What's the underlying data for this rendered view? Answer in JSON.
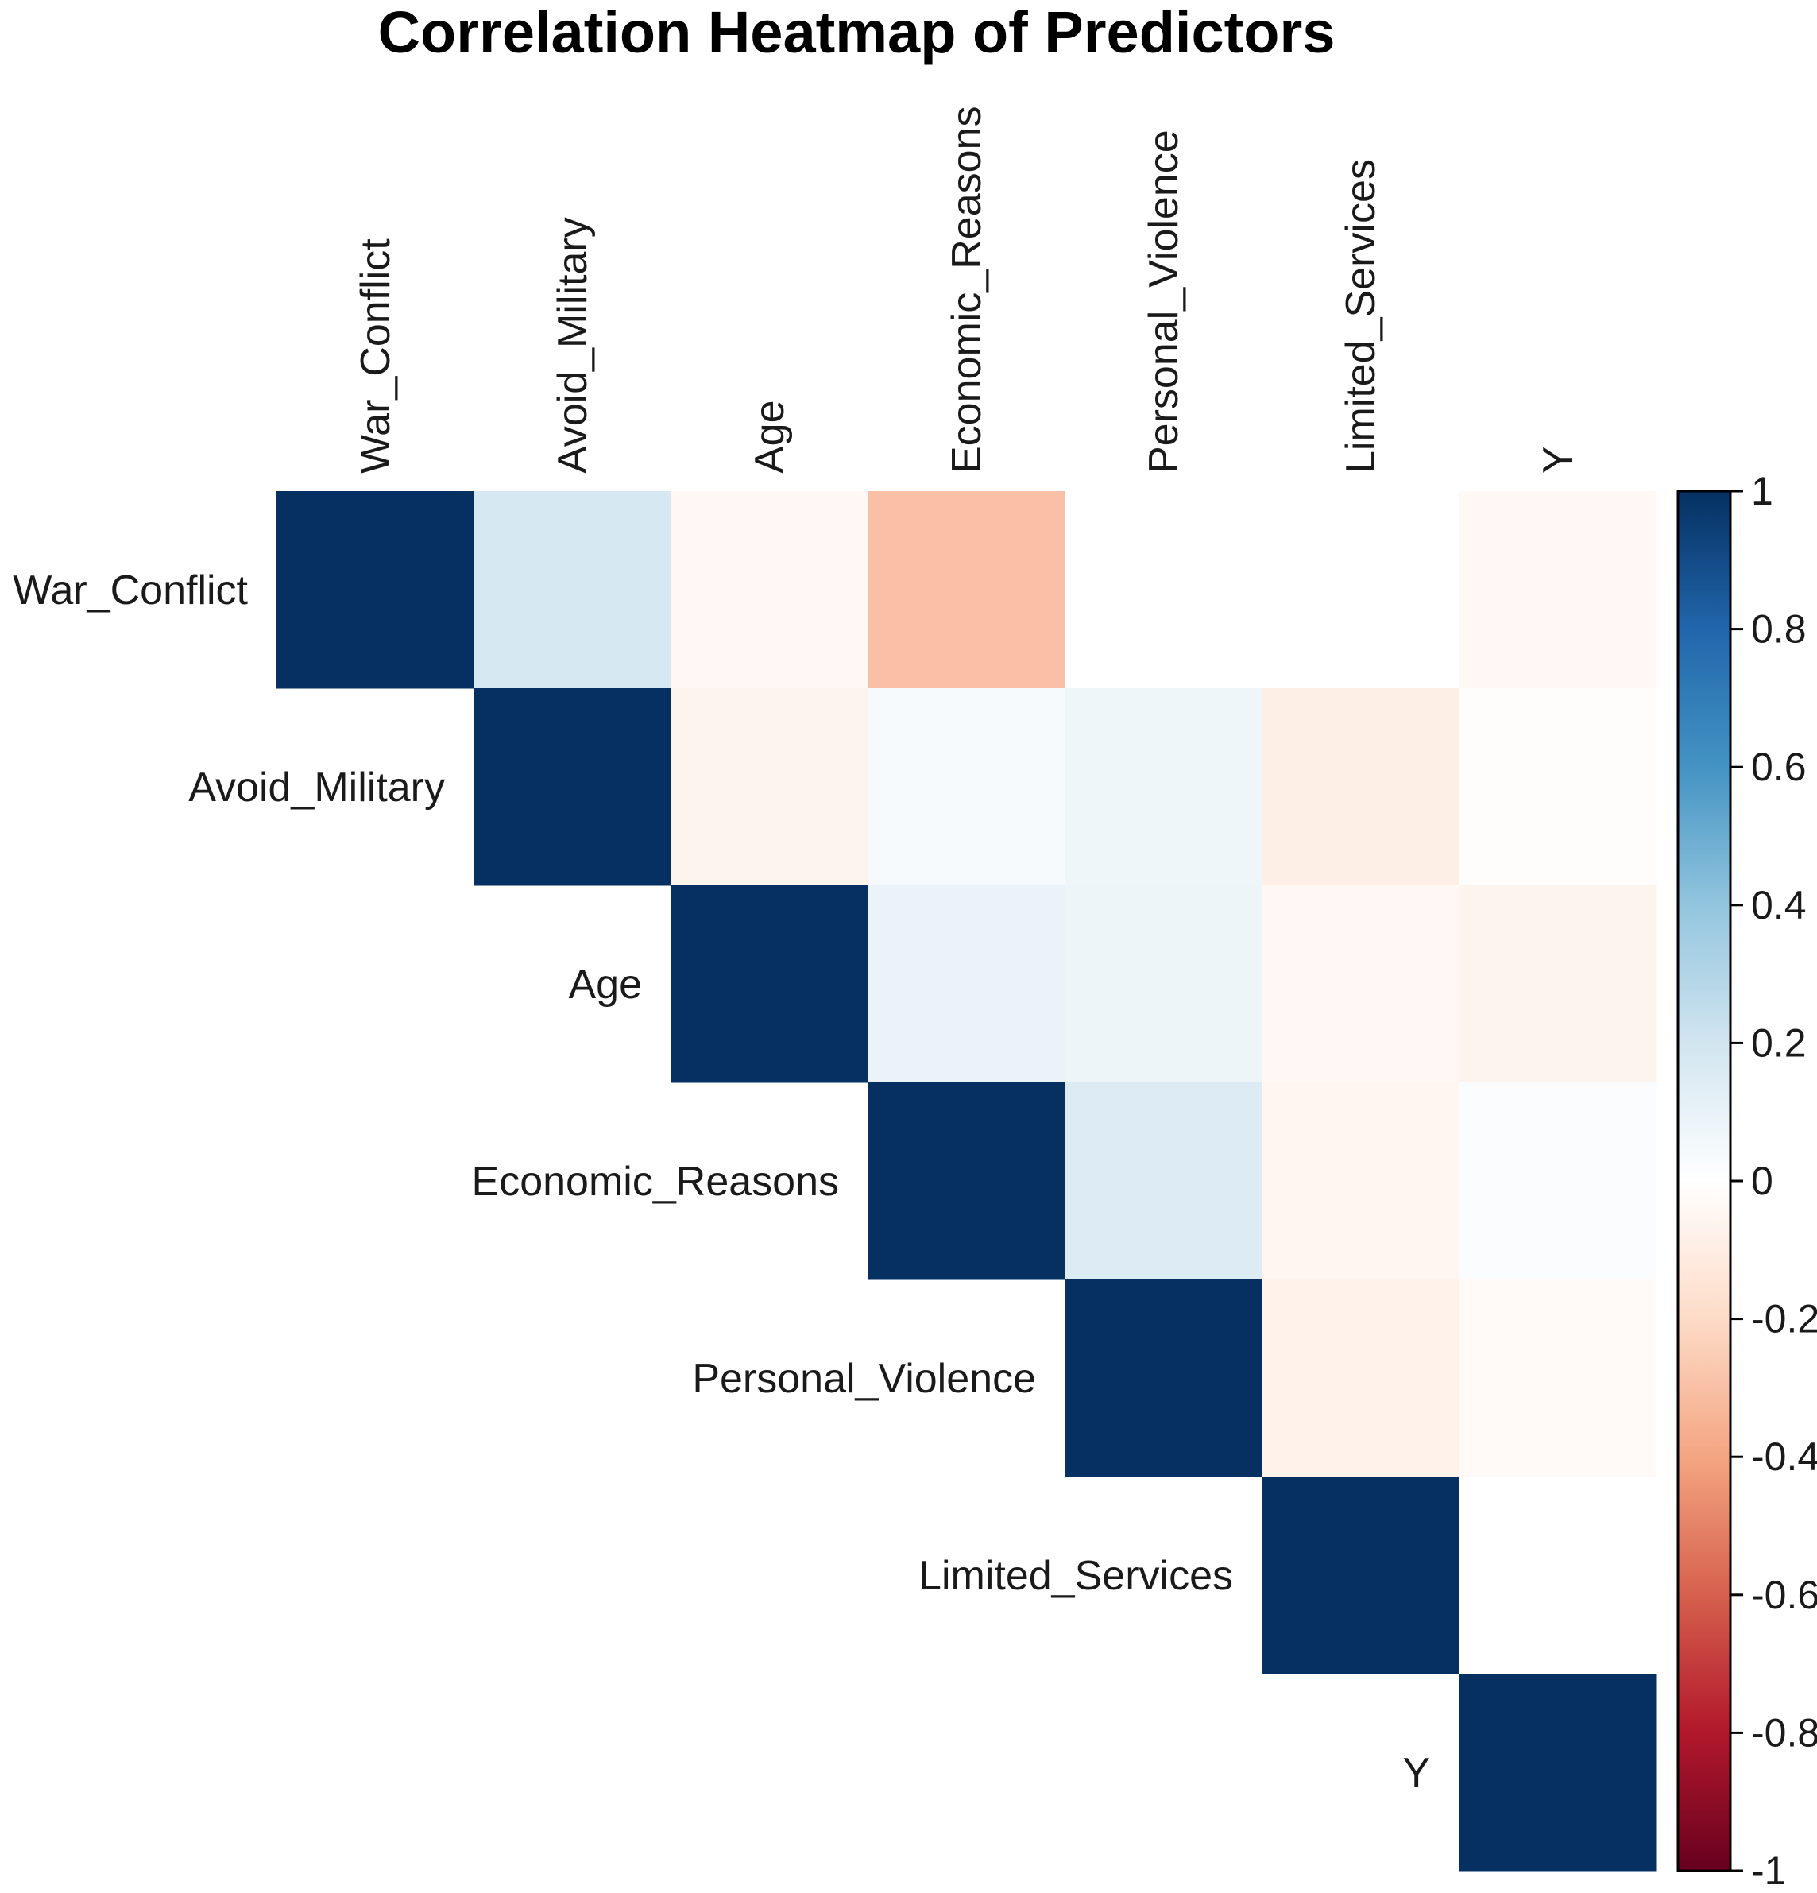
{
  "chart_data": {
    "type": "heatmap",
    "title": "Correlation Heatmap of Predictors",
    "variables": [
      "War_Conflict",
      "Avoid_Military",
      "Age",
      "Economic_Reasons",
      "Personal_Violence",
      "Limited_Services",
      "Y"
    ],
    "triangle": "upper",
    "values": [
      [
        1,
        0.18,
        -0.04,
        -0.3,
        0.0,
        0.0,
        -0.04
      ],
      [
        null,
        1,
        -0.06,
        0.04,
        0.07,
        -0.09,
        -0.01
      ],
      [
        null,
        null,
        1,
        0.09,
        0.08,
        -0.04,
        -0.06
      ],
      [
        null,
        null,
        null,
        1,
        0.15,
        -0.05,
        0.02
      ],
      [
        null,
        null,
        null,
        null,
        1,
        -0.07,
        -0.03
      ],
      [
        null,
        null,
        null,
        null,
        null,
        1,
        0.0
      ],
      [
        null,
        null,
        null,
        null,
        null,
        null,
        1
      ]
    ],
    "colorbar": {
      "range": [
        -1,
        1
      ],
      "ticks": [
        1,
        0.8,
        0.6,
        0.4,
        0.2,
        0,
        -0.2,
        -0.4,
        -0.6,
        -0.8,
        -1
      ],
      "tick_labels": [
        "1",
        "0.8",
        "0.6",
        "0.4",
        "0.2",
        "0",
        "-0.2",
        "-0.4",
        "-0.6",
        "-0.8",
        "-1"
      ],
      "palette": [
        "#67001f",
        "#b2182b",
        "#d6604d",
        "#f4a582",
        "#fddbc7",
        "#ffffff",
        "#d1e5f0",
        "#92c5de",
        "#4393c3",
        "#2166ac",
        "#053061"
      ]
    }
  }
}
